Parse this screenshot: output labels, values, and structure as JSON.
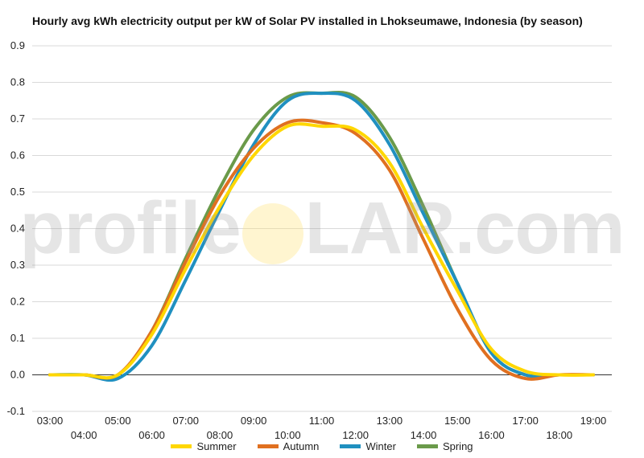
{
  "chart_data": {
    "type": "line",
    "title": "Hourly avg kWh electricity output per kW of Solar PV installed in Lhokseumawe, Indonesia (by season)",
    "xlabel": "",
    "ylabel": "",
    "ylim": [
      -0.1,
      0.9
    ],
    "yticks": [
      "-0.1",
      "0.0",
      "0.1",
      "0.2",
      "0.3",
      "0.4",
      "0.5",
      "0.6",
      "0.7",
      "0.8",
      "0.9"
    ],
    "categories": [
      "03:00",
      "04:00",
      "05:00",
      "06:00",
      "07:00",
      "08:00",
      "09:00",
      "10:00",
      "11:00",
      "12:00",
      "13:00",
      "14:00",
      "15:00",
      "16:00",
      "17:00",
      "18:00",
      "19:00"
    ],
    "grid": true,
    "legend_position": "bottom",
    "series": [
      {
        "name": "Summer",
        "color": "#ffd700",
        "values": [
          0,
          0,
          0,
          0.11,
          0.29,
          0.46,
          0.6,
          0.68,
          0.68,
          0.67,
          0.58,
          0.4,
          0.23,
          0.07,
          0.01,
          0,
          0
        ]
      },
      {
        "name": "Autumn",
        "color": "#e07020",
        "values": [
          0,
          0,
          0,
          0.12,
          0.31,
          0.49,
          0.62,
          0.69,
          0.69,
          0.66,
          0.56,
          0.37,
          0.18,
          0.04,
          -0.01,
          0,
          0
        ]
      },
      {
        "name": "Winter",
        "color": "#2090c0",
        "values": [
          0,
          0,
          -0.01,
          0.08,
          0.26,
          0.45,
          0.63,
          0.75,
          0.77,
          0.75,
          0.63,
          0.44,
          0.25,
          0.06,
          0,
          0,
          0
        ]
      },
      {
        "name": "Spring",
        "color": "#6a9a4a",
        "values": [
          0,
          0,
          0,
          0.12,
          0.32,
          0.51,
          0.67,
          0.76,
          0.77,
          0.76,
          0.65,
          0.46,
          0.25,
          0.06,
          0,
          0,
          0
        ]
      }
    ]
  },
  "watermark": {
    "before": "profile",
    "after": "LAR.com"
  }
}
